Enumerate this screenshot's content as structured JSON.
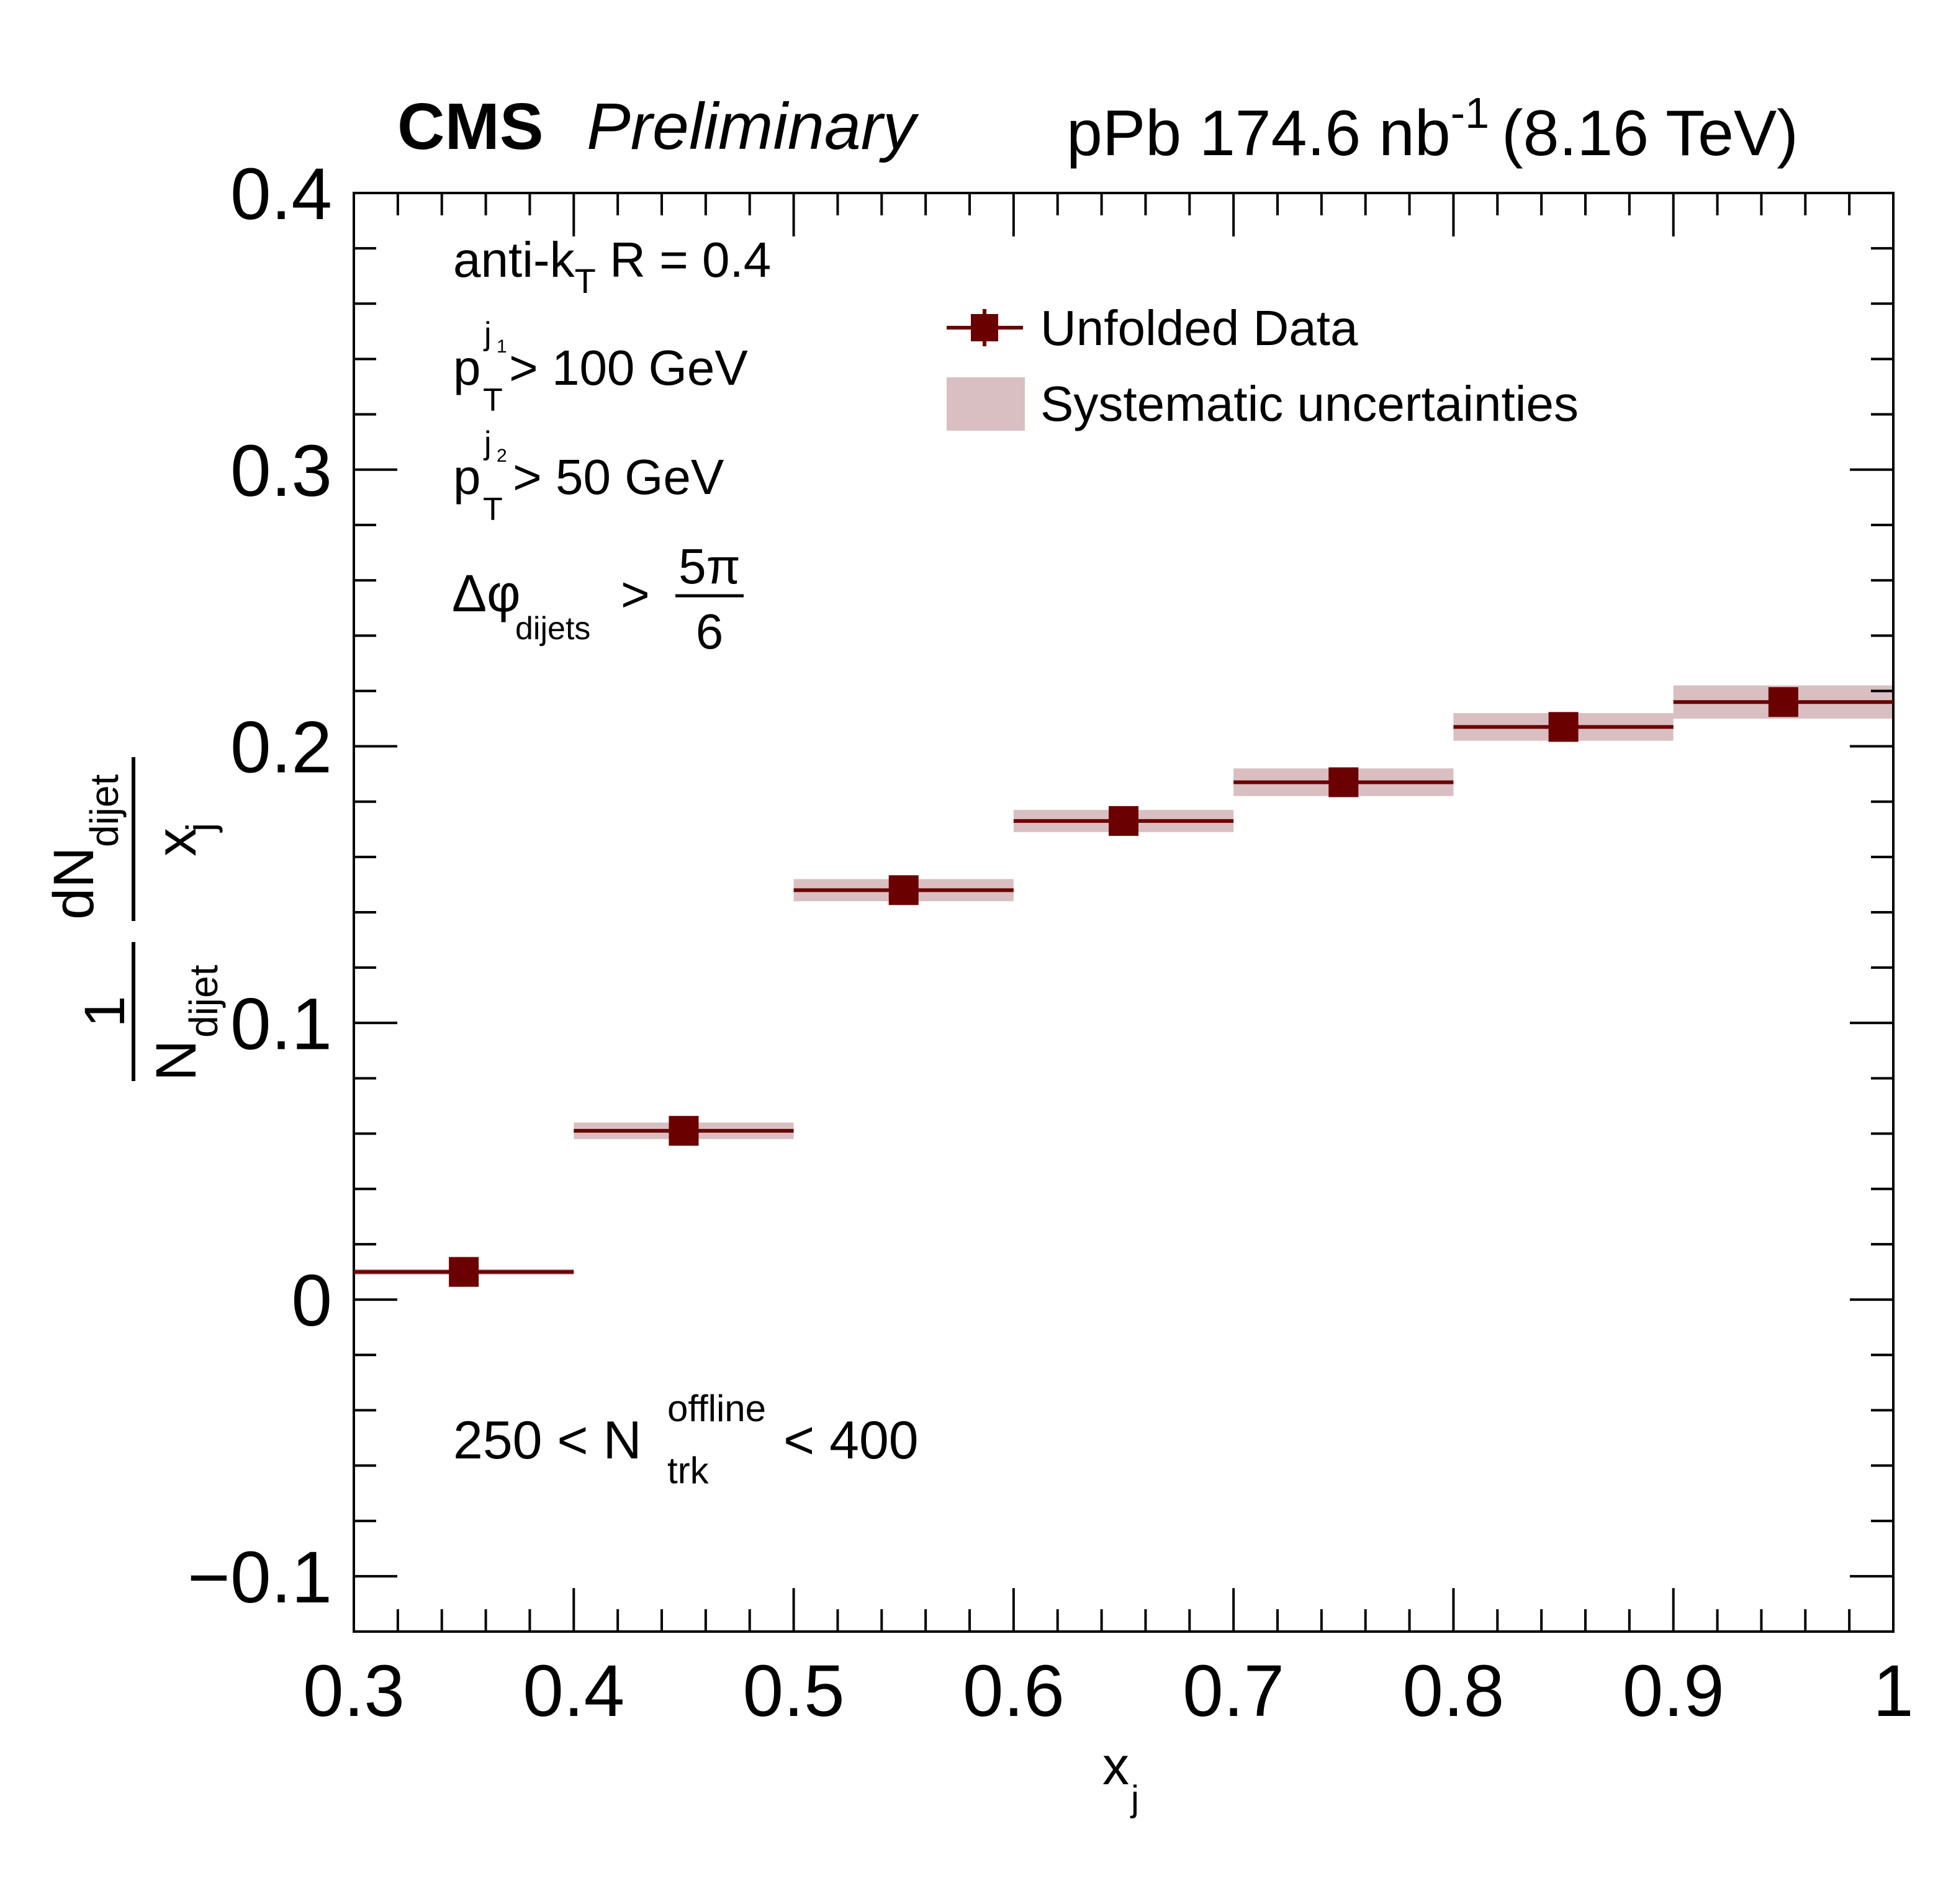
{
  "header": {
    "experiment": "CMS",
    "status": "Preliminary",
    "lumi_prefix": "pPb 174.6 nb",
    "lumi_exponent": "-1",
    "energy": "(8.16 TeV)"
  },
  "annotations": {
    "algo_main": "anti-k",
    "algo_sub": "T",
    "algo_rest": " R = 0.4",
    "pt1_p": "p",
    "pt1_sub": "T",
    "pt1_sup": "j",
    "pt1_supsub": "1",
    "pt1_rest": " > 100 GeV",
    "pt2_p": "p",
    "pt2_sub": "T",
    "pt2_sup": "j",
    "pt2_supsub": "2",
    "pt2_rest": " > 50 GeV",
    "dphi_main": "Δφ",
    "dphi_sub": "dijets",
    "dphi_gt": ">",
    "dphi_num": "5π",
    "dphi_den": "6",
    "mult_left": "250 < N",
    "mult_sup": "offline",
    "mult_sub": "trk",
    "mult_right": " < 400"
  },
  "chart_data": {
    "type": "scatter",
    "x_edges": [
      0.3,
      0.4,
      0.5,
      0.6,
      0.7,
      0.8,
      0.9,
      1.0
    ],
    "x": [
      0.35,
      0.45,
      0.55,
      0.65,
      0.75,
      0.85,
      0.95
    ],
    "series": [
      {
        "name": "Unfolded Data",
        "values": [
          0.01,
          0.061,
          0.148,
          0.173,
          0.187,
          0.207,
          0.216
        ],
        "syst": [
          0.001,
          0.003,
          0.004,
          0.004,
          0.005,
          0.005,
          0.006
        ]
      }
    ],
    "legend": {
      "data_label": "Unfolded Data",
      "syst_label": "Systematic uncertainties",
      "placement": "top-center"
    },
    "xlabel_main": "x",
    "xlabel_sub": "j",
    "ylabel": {
      "one": "1",
      "N": "N",
      "N_sub": "dijet",
      "dN": "dN",
      "dN_sub": "dijet",
      "x": "x",
      "x_sub": "j"
    },
    "xlim": [
      0.3,
      1.0
    ],
    "ylim": [
      -0.12,
      0.4
    ],
    "x_ticks": [
      0.3,
      0.4,
      0.5,
      0.6,
      0.7,
      0.8,
      0.9,
      1.0
    ],
    "x_tick_labels": [
      "0.3",
      "0.4",
      "0.5",
      "0.6",
      "0.7",
      "0.8",
      "0.9",
      "1"
    ],
    "y_ticks": [
      -0.1,
      0.0,
      0.1,
      0.2,
      0.3,
      0.4
    ],
    "y_tick_labels": [
      "−0.1",
      "0",
      "0.1",
      "0.2",
      "0.3",
      "0.4"
    ],
    "grid": false,
    "colors": {
      "marker": "#6b0000",
      "syst_band": "#d9bfc2",
      "axis": "#000000"
    }
  }
}
